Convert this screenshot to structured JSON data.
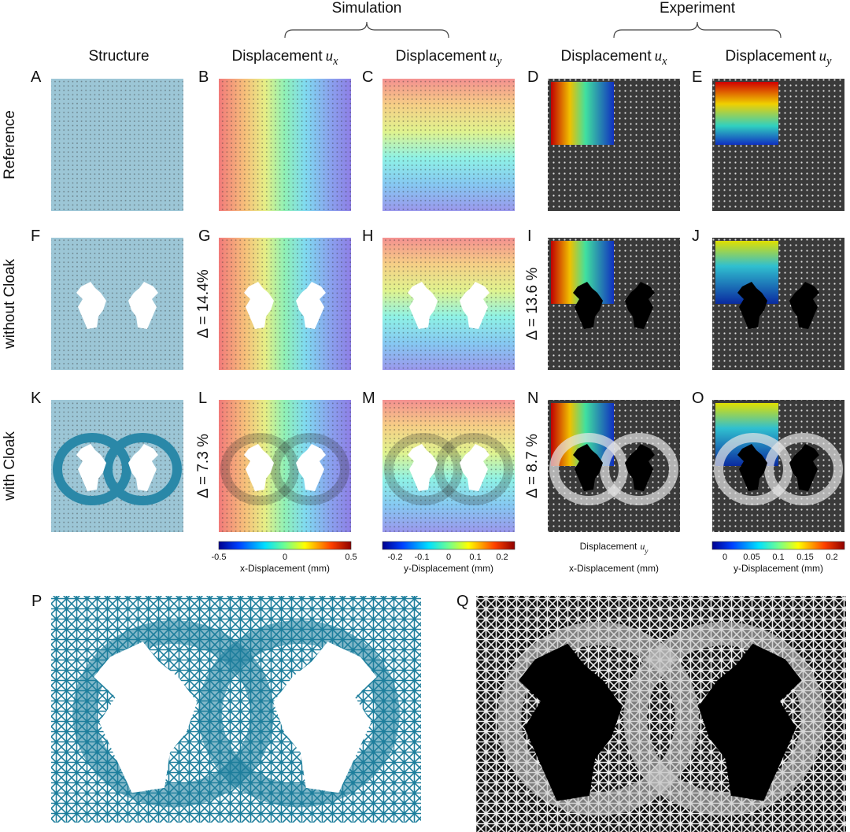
{
  "header": {
    "simulation": "Simulation",
    "experiment": "Experiment"
  },
  "columns": [
    {
      "text": "Structure"
    },
    {
      "text": "Displacement",
      "var": "u",
      "sub": "x"
    },
    {
      "text": "Displacement",
      "var": "u",
      "sub": "y"
    },
    {
      "text": "Displacement",
      "var": "u",
      "sub": "x"
    },
    {
      "text": "Displacement",
      "var": "u",
      "sub": "y"
    }
  ],
  "rows": [
    "Reference",
    "without Cloak",
    "with Cloak"
  ],
  "panels": [
    "A",
    "B",
    "C",
    "D",
    "E",
    "F",
    "G",
    "H",
    "I",
    "J",
    "K",
    "L",
    "M",
    "N",
    "O",
    "P",
    "Q"
  ],
  "deltas": [
    {
      "panel": "G",
      "text": "Δ = 14.4%"
    },
    {
      "panel": "I",
      "text": "Δ = 13.6 %"
    },
    {
      "panel": "L",
      "text": "Δ = 7.3 %"
    },
    {
      "panel": "N",
      "text": "Δ = 8.7 %"
    }
  ],
  "colorbars": [
    {
      "ticks": [
        "-0.5",
        "0",
        "0.5"
      ],
      "label": "x-Displacement (mm)"
    },
    {
      "ticks": [
        "-0.2",
        "-0.1",
        "0",
        "0.1",
        "0.2"
      ],
      "label": "y-Displacement (mm)"
    },
    {
      "ticks": [
        "0",
        "0.05",
        "0.1",
        "0.15",
        "0.2"
      ],
      "label": "y-Displacement (mm)"
    }
  ],
  "experiment_note": {
    "text": "Displacement",
    "var": "u",
    "sub": "y",
    "label": "x-Displacement (mm)"
  }
}
